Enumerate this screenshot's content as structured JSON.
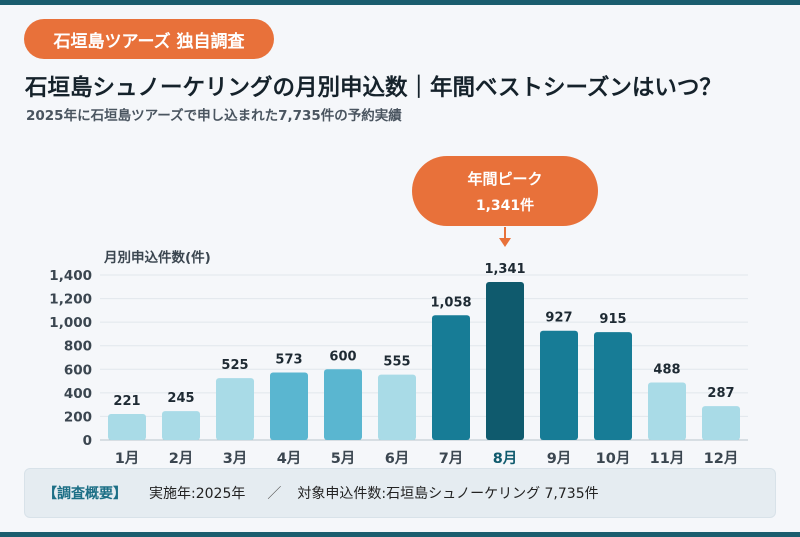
{
  "badge": "石垣島ツアーズ 独自調査",
  "title": "石垣島シュノーケリングの月別申込数｜年間ベストシーズンはいつ？",
  "subtitle": "2025年に石垣島ツアーズで申し込まれた7,735件の予約実績",
  "callout": {
    "line1": "年間ピーク",
    "line2": "1,341件"
  },
  "summary": {
    "label": "【調査概要】",
    "item1": "実施年:2025年",
    "separator": "／",
    "item2": "対象申込件数:石垣島シュノーケリング 7,735件"
  },
  "colors": {
    "accent": "#e8713a",
    "low": "#a9dbe7",
    "mid": "#5ab6d0",
    "high": "#177c96",
    "peak": "#0f5a6d",
    "text": "#15222b"
  },
  "chart_data": {
    "type": "bar",
    "ylabel": "月別申込件数(件)",
    "ylim": [
      0,
      1400
    ],
    "yticks": [
      0,
      200,
      400,
      600,
      800,
      1000,
      1200,
      1400
    ],
    "ytick_labels": [
      "0",
      "200",
      "400",
      "600",
      "800",
      "1,000",
      "1,200",
      "1,400"
    ],
    "categories": [
      "1月",
      "2月",
      "3月",
      "4月",
      "5月",
      "6月",
      "7月",
      "8月",
      "9月",
      "10月",
      "11月",
      "12月"
    ],
    "values": [
      221,
      245,
      525,
      573,
      600,
      555,
      1058,
      1341,
      927,
      915,
      488,
      287
    ],
    "value_labels": [
      "221",
      "245",
      "525",
      "573",
      "600",
      "555",
      "1,058",
      "1,341",
      "927",
      "915",
      "488",
      "287"
    ],
    "bar_color_keys": [
      "low",
      "low",
      "low",
      "mid",
      "mid",
      "low",
      "high",
      "peak",
      "high",
      "high",
      "low",
      "low"
    ],
    "highlight_index": 7,
    "grid": true
  }
}
